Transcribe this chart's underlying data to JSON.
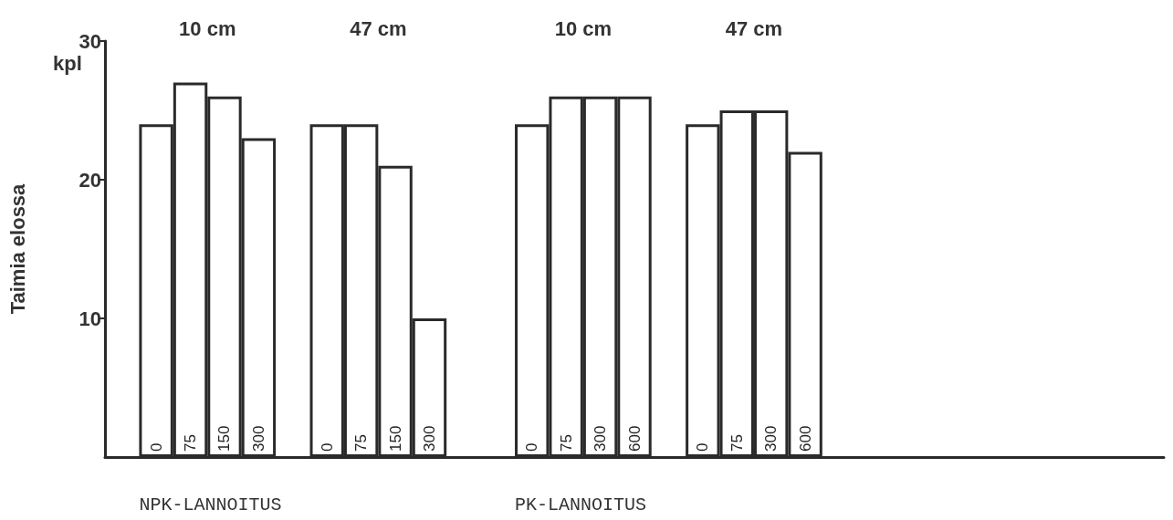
{
  "chart_data": {
    "type": "bar",
    "ylabel": "Taimia elossa",
    "categories": [
      null,
      "0",
      "75",
      "150",
      "300",
      null,
      "0",
      "75",
      "150",
      "300",
      null,
      null,
      "0",
      "75",
      "300",
      "600",
      null,
      "0",
      "75",
      "300",
      "600",
      null,
      null,
      null,
      null,
      null,
      null,
      null,
      null,
      null,
      null
    ],
    "values": [
      null,
      24,
      27,
      26,
      23,
      null,
      24,
      24,
      21,
      10,
      null,
      null,
      24,
      26,
      26,
      26,
      null,
      24,
      25,
      25,
      22,
      null,
      null,
      null,
      null,
      null,
      null,
      null,
      null,
      null,
      null
    ],
    "color": "#ffffff",
    "ylim": [
      0,
      30
    ],
    "yticks": [
      10,
      20,
      30
    ],
    "grid": false,
    "annotations": [
      "10 cm",
      "47 cm",
      "10 cm",
      "47 cm",
      "NPK-LANNOITUS",
      "PK-LANNOITUS",
      "kpl"
    ]
  }
}
